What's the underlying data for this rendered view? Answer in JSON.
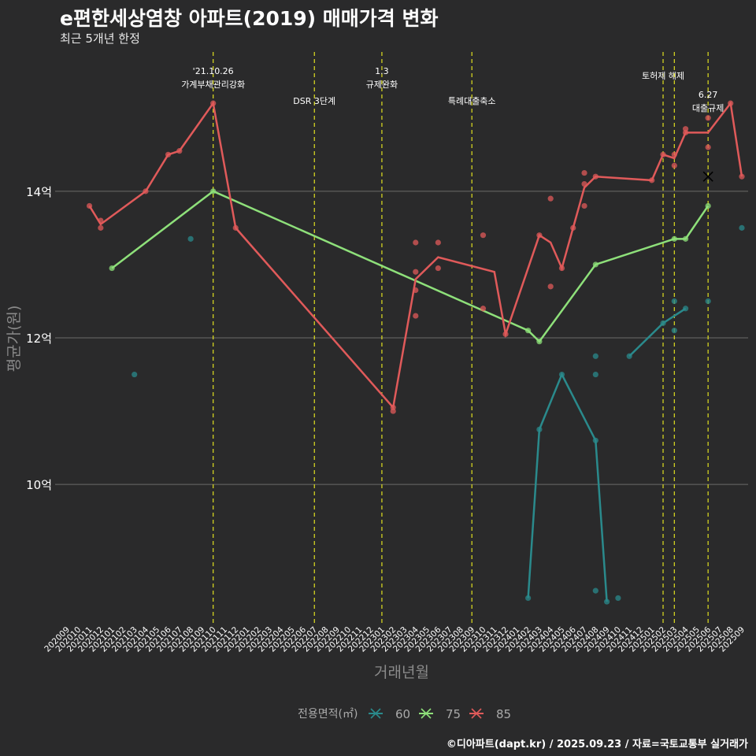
{
  "title": "e편한세상염창 아파트(2019) 매매가격 변화",
  "subtitle": "최근 5개년 한정",
  "caption": "©디아파트(dapt.kr) / 2025.09.23 / 자료=국토교통부 실거래가",
  "chart_data": {
    "type": "line",
    "xlabel": "거래년월",
    "ylabel": "평균가(원)",
    "categories": [
      "202009",
      "202010",
      "202011",
      "202012",
      "202101",
      "202102",
      "202103",
      "202104",
      "202105",
      "202106",
      "202107",
      "202108",
      "202109",
      "202110",
      "202111",
      "202112",
      "202201",
      "202202",
      "202203",
      "202204",
      "202205",
      "202206",
      "202207",
      "202208",
      "202209",
      "202210",
      "202211",
      "202212",
      "202301",
      "202302",
      "202303",
      "202304",
      "202305",
      "202306",
      "202307",
      "202308",
      "202309",
      "202310",
      "202311",
      "202312",
      "202401",
      "202402",
      "202403",
      "202404",
      "202405",
      "202406",
      "202407",
      "202408",
      "202409",
      "202410",
      "202411",
      "202412",
      "202501",
      "202502",
      "202503",
      "202504",
      "202505",
      "202506",
      "202507",
      "202508",
      "202509"
    ],
    "ylim": [
      8.1,
      15.9
    ],
    "yticks": [
      10,
      12,
      14
    ],
    "ytick_labels": [
      "10억",
      "12억",
      "14억"
    ],
    "legend_title": "전용면적(㎡)",
    "series": [
      {
        "name": "60",
        "color": "#2a8a8c",
        "line": [
          [
            "202411",
            11.75
          ],
          [
            "202502",
            12.2
          ],
          [
            "202503",
            12.3
          ],
          [
            "202504",
            12.4
          ]
        ],
        "points": [
          [
            "202103",
            11.5
          ],
          [
            "202108",
            13.35
          ],
          [
            "202402",
            8.45
          ],
          [
            "202403",
            10.75
          ],
          [
            "202405",
            11.5
          ],
          [
            "202408",
            10.6
          ],
          [
            "202408",
            11.75
          ],
          [
            "202408",
            11.5
          ],
          [
            "202408",
            8.55
          ],
          [
            "202409",
            8.4
          ],
          [
            "202410",
            8.45
          ],
          [
            "202411",
            11.75
          ],
          [
            "202502",
            12.2
          ],
          [
            "202503",
            12.5
          ],
          [
            "202503",
            12.1
          ],
          [
            "202504",
            12.4
          ],
          [
            "202506",
            12.5
          ],
          [
            "202509",
            13.5
          ]
        ],
        "extra_line": [
          [
            "202402",
            8.45
          ],
          [
            "202403",
            10.75
          ],
          [
            "202405",
            11.5
          ],
          [
            "202408",
            10.6
          ],
          [
            "202409",
            8.4
          ]
        ]
      },
      {
        "name": "75",
        "color": "#8ee07a",
        "line": [
          [
            "202101",
            12.95
          ],
          [
            "202110",
            14.0
          ],
          [
            "202402",
            12.1
          ],
          [
            "202403",
            11.95
          ],
          [
            "202408",
            13.0
          ],
          [
            "202503",
            13.35
          ],
          [
            "202504",
            13.35
          ],
          [
            "202506",
            13.8
          ]
        ],
        "points": [
          [
            "202101",
            12.95
          ],
          [
            "202110",
            14.0
          ],
          [
            "202402",
            12.1
          ],
          [
            "202403",
            11.95
          ],
          [
            "202408",
            13.0
          ],
          [
            "202503",
            13.35
          ],
          [
            "202504",
            13.35
          ],
          [
            "202506",
            13.8
          ]
        ]
      },
      {
        "name": "85",
        "color": "#e05a5a",
        "line": [
          [
            "202011",
            13.8
          ],
          [
            "202012",
            13.55
          ],
          [
            "202104",
            14.0
          ],
          [
            "202106",
            14.5
          ],
          [
            "202107",
            14.55
          ],
          [
            "202110",
            15.2
          ],
          [
            "202112",
            13.5
          ],
          [
            "202302",
            11.05
          ],
          [
            "202304",
            12.8
          ],
          [
            "202306",
            13.1
          ],
          [
            "202311",
            12.9
          ],
          [
            "202312",
            12.05
          ],
          [
            "202403",
            13.4
          ],
          [
            "202404",
            13.3
          ],
          [
            "202405",
            12.95
          ],
          [
            "202406",
            13.5
          ],
          [
            "202407",
            14.05
          ],
          [
            "202408",
            14.2
          ],
          [
            "202501",
            14.15
          ],
          [
            "202502",
            14.5
          ],
          [
            "202503",
            14.45
          ],
          [
            "202504",
            14.8
          ],
          [
            "202506",
            14.8
          ],
          [
            "202508",
            15.2
          ],
          [
            "202509",
            14.2
          ]
        ],
        "points": [
          [
            "202011",
            13.8
          ],
          [
            "202012",
            13.6
          ],
          [
            "202012",
            13.5
          ],
          [
            "202104",
            14.0
          ],
          [
            "202106",
            14.5
          ],
          [
            "202107",
            14.55
          ],
          [
            "202110",
            15.2
          ],
          [
            "202112",
            13.5
          ],
          [
            "202302",
            11.05
          ],
          [
            "202302",
            11.0
          ],
          [
            "202304",
            13.3
          ],
          [
            "202304",
            12.9
          ],
          [
            "202304",
            12.65
          ],
          [
            "202304",
            12.3
          ],
          [
            "202306",
            13.3
          ],
          [
            "202306",
            12.95
          ],
          [
            "202310",
            13.4
          ],
          [
            "202310",
            12.4
          ],
          [
            "202312",
            12.05
          ],
          [
            "202403",
            13.4
          ],
          [
            "202404",
            13.9
          ],
          [
            "202404",
            12.7
          ],
          [
            "202405",
            12.95
          ],
          [
            "202406",
            13.5
          ],
          [
            "202407",
            14.25
          ],
          [
            "202407",
            14.1
          ],
          [
            "202407",
            13.8
          ],
          [
            "202408",
            14.2
          ],
          [
            "202501",
            14.15
          ],
          [
            "202502",
            14.5
          ],
          [
            "202503",
            14.5
          ],
          [
            "202503",
            14.35
          ],
          [
            "202504",
            14.85
          ],
          [
            "202504",
            14.8
          ],
          [
            "202506",
            14.6
          ],
          [
            "202506",
            15.0
          ],
          [
            "202508",
            15.2
          ],
          [
            "202509",
            14.2
          ]
        ]
      }
    ],
    "cross_marker": {
      "x": "202506",
      "y": 14.2
    },
    "events": [
      {
        "x": "202110",
        "label1": "'21.10.26",
        "label2": "가계부채관리강화",
        "row": 1
      },
      {
        "x": "202207",
        "label1": "DSR 3단계",
        "label2": "",
        "row": 2
      },
      {
        "x": "202301",
        "label1": "1.3",
        "label2": "규제완화",
        "row": 1
      },
      {
        "x": "202309",
        "label1": "특례대출축소",
        "label2": "",
        "row": 2
      },
      {
        "x": "202502",
        "label1": "토허제 해제",
        "label2": "",
        "row": 0
      },
      {
        "x": "202503",
        "label1": "",
        "label2": "",
        "row": 0
      },
      {
        "x": "202506",
        "label1": "6.27",
        "label2": "대출규제",
        "row": 3
      }
    ]
  }
}
